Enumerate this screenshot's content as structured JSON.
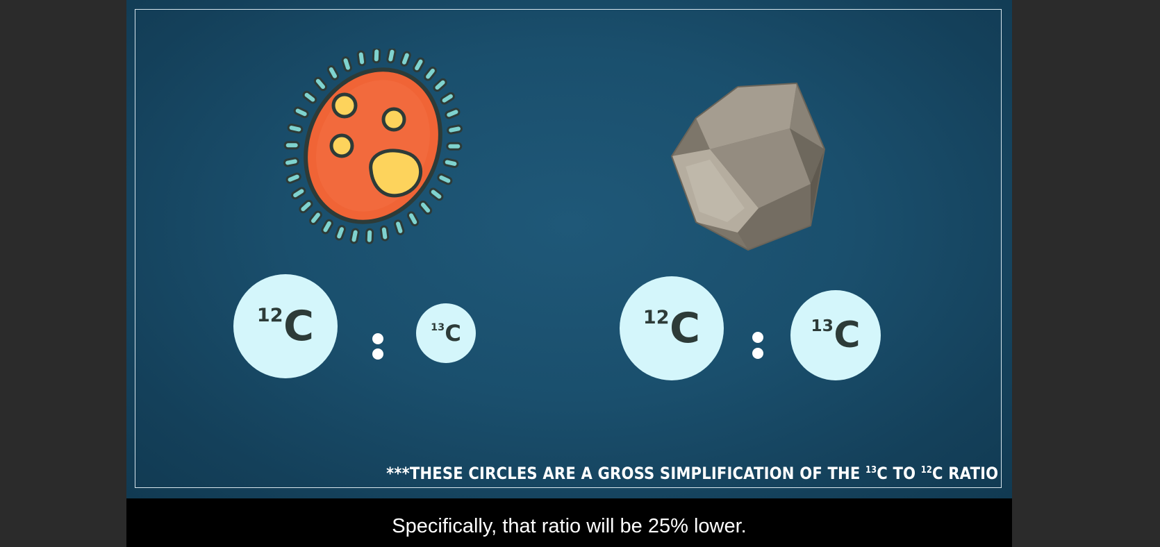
{
  "video": {
    "left_group": {
      "organism_icon": "microbe-icon",
      "ratio": [
        {
          "isotope": "12",
          "element": "C"
        },
        {
          "isotope": "13",
          "element": "C"
        }
      ]
    },
    "right_group": {
      "object_icon": "rock-icon",
      "ratio": [
        {
          "isotope": "12",
          "element": "C"
        },
        {
          "isotope": "13",
          "element": "C"
        }
      ]
    },
    "footnote": {
      "prefix": "***THESE CIRCLES ARE A GROSS SIMPLIFICATION OF THE ",
      "iso_a": "13",
      "middle": "C TO ",
      "iso_b": "12",
      "suffix": "C RATIO"
    },
    "colors": {
      "background": "#1a4f6d",
      "circle_fill": "#d4f6fb",
      "microbe_body": "#f06436",
      "microbe_spots": "#fdd35c",
      "microbe_cilia": "#7fd3cf",
      "rock": "#8f877a"
    }
  },
  "caption": {
    "text": "Specifically, that ratio will be 25% lower."
  }
}
